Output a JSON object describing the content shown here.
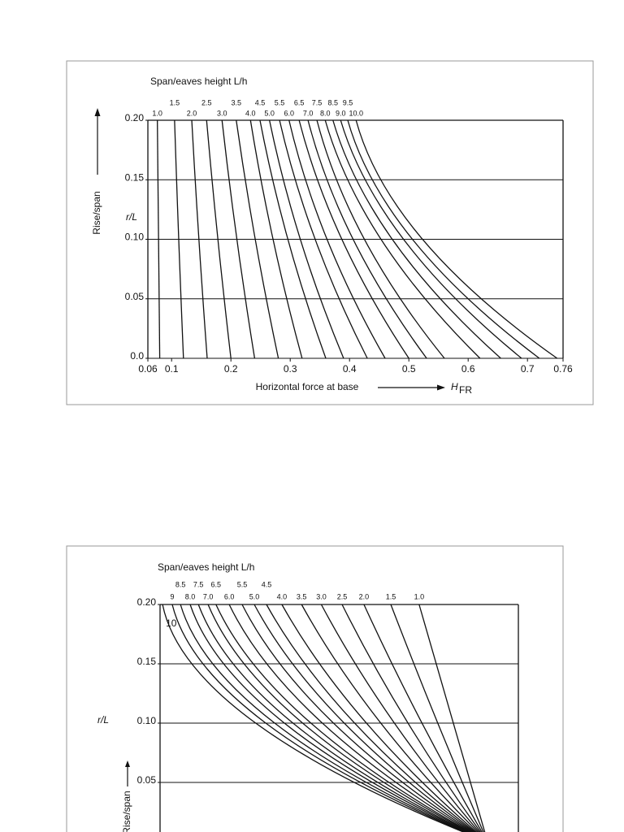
{
  "chart_data": [
    {
      "type": "line",
      "title": "Span/eaves height  L/h",
      "y_label": "Rise/span",
      "y_symbol": "r/L",
      "x_label": "Horizontal force at base",
      "x_symbol": "H",
      "x_symbol_subscript": "FR",
      "xlim": [
        0.06,
        0.76
      ],
      "xticks": [
        0.06,
        0.1,
        0.2,
        0.3,
        0.4,
        0.5,
        0.6,
        0.7,
        0.76
      ],
      "ylim": [
        0,
        0.2
      ],
      "yticks": [
        {
          "value": 0,
          "label": "0.0"
        },
        0.05,
        {
          "value": 0.1,
          "label": "0.10"
        },
        0.15,
        {
          "value": 0.2,
          "label": "0.20"
        }
      ],
      "grid": true,
      "color": "#111111",
      "y": [
        0.2,
        0.1,
        0
      ],
      "series": [
        {
          "name": "1.0",
          "x": [
            0.076,
            0.078,
            0.08
          ]
        },
        {
          "name": "1.5",
          "x": [
            0.105,
            0.112,
            0.12
          ]
        },
        {
          "name": "2.0",
          "x": [
            0.134,
            0.146,
            0.16
          ]
        },
        {
          "name": "2.5",
          "x": [
            0.159,
            0.178,
            0.2
          ]
        },
        {
          "name": "3.0",
          "x": [
            0.185,
            0.21,
            0.24
          ]
        },
        {
          "name": "3.5",
          "x": [
            0.209,
            0.241,
            0.28
          ]
        },
        {
          "name": "4.0",
          "x": [
            0.233,
            0.271,
            0.32
          ]
        },
        {
          "name": "4.5",
          "x": [
            0.249,
            0.296,
            0.36
          ]
        },
        {
          "name": "5.0",
          "x": [
            0.265,
            0.317,
            0.39
          ]
        },
        {
          "name": "5.5",
          "x": [
            0.282,
            0.342,
            0.43
          ]
        },
        {
          "name": "6.0",
          "x": [
            0.298,
            0.362,
            0.46
          ]
        },
        {
          "name": "6.5",
          "x": [
            0.315,
            0.387,
            0.5
          ]
        },
        {
          "name": "7.0",
          "x": [
            0.33,
            0.406,
            0.53
          ]
        },
        {
          "name": "7.5",
          "x": [
            0.345,
            0.425,
            0.56
          ]
        },
        {
          "name": "8.0",
          "x": [
            0.359,
            0.453,
            0.62
          ]
        },
        {
          "name": "8.5",
          "x": [
            0.372,
            0.472,
            0.655
          ]
        },
        {
          "name": "9.0",
          "x": [
            0.385,
            0.491,
            0.69
          ]
        },
        {
          "name": "9.5",
          "x": [
            0.397,
            0.506,
            0.72
          ]
        },
        {
          "name": "10.0",
          "x": [
            0.411,
            0.523,
            0.75
          ]
        }
      ]
    },
    {
      "type": "line",
      "title": "Span/eaves height L/h",
      "y_label": "Rise/span",
      "y_symbol": "r/L",
      "xlim": [
        0,
        1
      ],
      "ylim": [
        0,
        0.2
      ],
      "yticks": [
        0.05,
        {
          "value": 0.1,
          "label": "0.10"
        },
        0.15,
        {
          "value": 0.2,
          "label": "0.20"
        }
      ],
      "grid": true,
      "color": "#111111",
      "y": [
        0.2,
        0.1,
        0
      ],
      "series": [
        {
          "name": "10",
          "x": [
            0.007,
            0.267,
            0.914
          ]
        },
        {
          "name": "9",
          "x": [
            0.034,
            0.295,
            0.914
          ]
        },
        {
          "name": "8.5",
          "x": [
            0.057,
            0.32,
            0.914
          ]
        },
        {
          "name": "8.0",
          "x": [
            0.084,
            0.347,
            0.914
          ]
        },
        {
          "name": "7.5",
          "x": [
            0.107,
            0.371,
            0.914
          ]
        },
        {
          "name": "7.0",
          "x": [
            0.134,
            0.398,
            0.914
          ]
        },
        {
          "name": "6.5",
          "x": [
            0.156,
            0.421,
            0.914
          ]
        },
        {
          "name": "6.0",
          "x": [
            0.193,
            0.453,
            0.914
          ]
        },
        {
          "name": "5.5",
          "x": [
            0.229,
            0.484,
            0.914
          ]
        },
        {
          "name": "5.0",
          "x": [
            0.263,
            0.514,
            0.914
          ]
        },
        {
          "name": "4.5",
          "x": [
            0.297,
            0.543,
            0.914
          ]
        },
        {
          "name": "4.0",
          "x": [
            0.34,
            0.576,
            0.914
          ]
        },
        {
          "name": "3.5",
          "x": [
            0.395,
            0.616,
            0.914
          ]
        },
        {
          "name": "3.0",
          "x": [
            0.45,
            0.654,
            0.914
          ]
        },
        {
          "name": "2.5",
          "x": [
            0.508,
            0.692,
            0.914
          ]
        },
        {
          "name": "2.0",
          "x": [
            0.569,
            0.731,
            0.914
          ]
        },
        {
          "name": "1.5",
          "x": [
            0.644,
            0.775,
            0.914
          ]
        },
        {
          "name": "1.0",
          "x": [
            0.723,
            0.819,
            0.914
          ]
        }
      ]
    }
  ]
}
